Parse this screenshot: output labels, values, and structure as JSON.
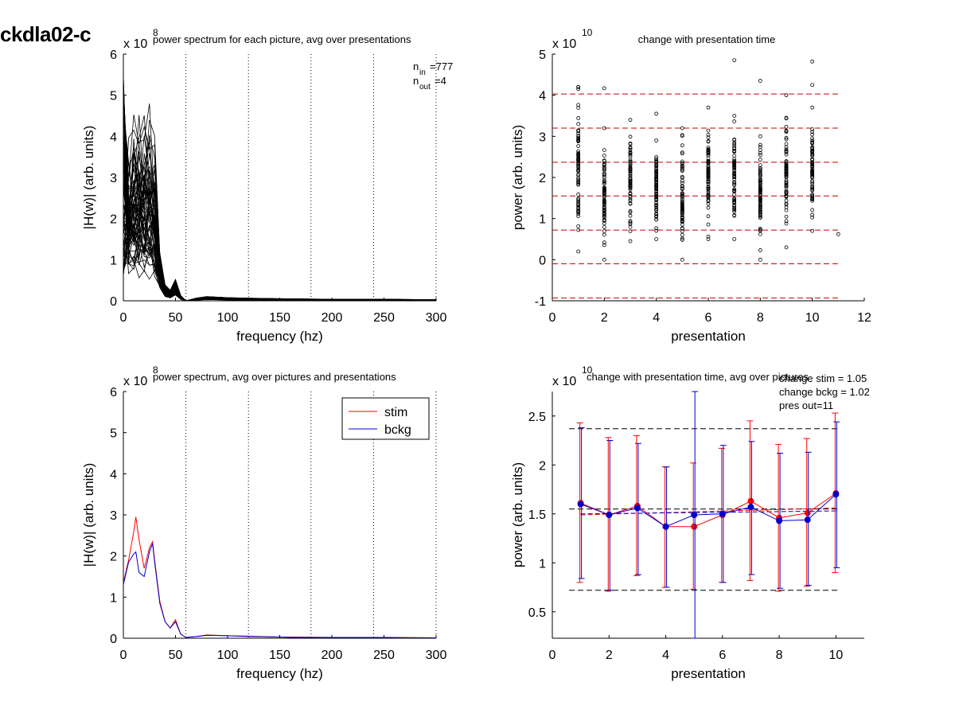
{
  "page": {
    "title": "ckdla02-c"
  },
  "colors": {
    "stim": "#ff0000",
    "bckg": "#0000cc",
    "spectrum": "#000000",
    "dashed_red": "#cc0000",
    "dashed_black": "#000000"
  },
  "chart_data": [
    {
      "id": "tl",
      "type": "line",
      "title": "power spectrum for each picture, avg over presentations",
      "xlabel": "frequency (hz)",
      "ylabel": "|H(w)| (arb. units)",
      "exponent": "x 10",
      "exponent_power": "8",
      "xlim": [
        0,
        300
      ],
      "ylim": [
        0,
        6
      ],
      "xticks": [
        "0",
        "50",
        "100",
        "150",
        "200",
        "250",
        "300"
      ],
      "yticks": [
        "0",
        "1",
        "2",
        "3",
        "4",
        "5",
        "6"
      ],
      "vlines": [
        60,
        120,
        180,
        240,
        300
      ],
      "annotation": {
        "n_in_label": "n",
        "n_in_sub": "in",
        "n_in_value": "=777",
        "n_out_label": "n",
        "n_out_sub": "out",
        "n_out_value": "=4"
      },
      "mean_spectrum": {
        "x": [
          0,
          5,
          10,
          15,
          20,
          25,
          30,
          35,
          40,
          45,
          50,
          55,
          60,
          70,
          80,
          100,
          120,
          150,
          200,
          250,
          300
        ],
        "y": [
          2.1,
          2.2,
          2.5,
          2.6,
          2.5,
          2.4,
          2.2,
          0.9,
          0.3,
          0.2,
          0.4,
          0.1,
          0.0,
          0.05,
          0.08,
          0.06,
          0.05,
          0.04,
          0.03,
          0.03,
          0.02
        ]
      },
      "n_curves_drawn": 60
    },
    {
      "id": "tr",
      "type": "scatter",
      "title": "change with presentation time",
      "xlabel": "presentation",
      "ylabel": "power (arb. units)",
      "exponent": "x 10",
      "exponent_power": "10",
      "xlim": [
        0,
        12
      ],
      "ylim": [
        -1,
        5
      ],
      "xticks": [
        "0",
        "2",
        "4",
        "6",
        "8",
        "10",
        "12"
      ],
      "yticks": [
        "-1",
        "0",
        "1",
        "2",
        "3",
        "4",
        "5"
      ],
      "hlines": [
        4.03,
        3.2,
        2.37,
        1.55,
        0.72,
        -0.1,
        -0.93
      ],
      "columns": [
        {
          "x": 1,
          "min": 0.2,
          "max": 4.2,
          "outliers": [
            3.3,
            4.15,
            4.2
          ]
        },
        {
          "x": 2,
          "min": 0.0,
          "max": 3.2,
          "outliers": [
            4.17
          ]
        },
        {
          "x": 3,
          "min": 0.45,
          "max": 3.4,
          "outliers": []
        },
        {
          "x": 4,
          "min": 0.5,
          "max": 2.9,
          "outliers": [
            3.55
          ]
        },
        {
          "x": 5,
          "min": 0.0,
          "max": 3.2,
          "outliers": []
        },
        {
          "x": 6,
          "min": 0.5,
          "max": 3.7,
          "outliers": []
        },
        {
          "x": 7,
          "min": 0.5,
          "max": 3.5,
          "outliers": [
            4.85
          ]
        },
        {
          "x": 8,
          "min": 0.0,
          "max": 3.0,
          "outliers": [
            4.35
          ]
        },
        {
          "x": 9,
          "min": 0.3,
          "max": 4.0,
          "outliers": []
        },
        {
          "x": 10,
          "min": 0.7,
          "max": 3.7,
          "outliers": [
            4.25,
            4.82
          ]
        },
        {
          "x": 11,
          "min": 0.62,
          "max": 0.62,
          "outliers": []
        }
      ]
    },
    {
      "id": "bl",
      "type": "line",
      "title": "power spectrum, avg over pictures and presentations",
      "xlabel": "frequency (hz)",
      "ylabel": "|H(w)| (arb. units)",
      "exponent": "x 10",
      "exponent_power": "8",
      "xlim": [
        0,
        300
      ],
      "ylim": [
        0,
        6
      ],
      "xticks": [
        "0",
        "50",
        "100",
        "150",
        "200",
        "250",
        "300"
      ],
      "yticks": [
        "0",
        "1",
        "2",
        "3",
        "4",
        "5",
        "6"
      ],
      "vlines": [
        60,
        120,
        180,
        240,
        300
      ],
      "legend": {
        "position": "top-right",
        "entries": [
          "stim",
          "bckg"
        ]
      },
      "series": [
        {
          "name": "stim",
          "x": [
            0,
            5,
            10,
            12,
            15,
            20,
            25,
            28,
            30,
            35,
            40,
            45,
            50,
            55,
            60,
            70,
            80,
            100,
            120,
            150,
            160,
            200,
            250,
            300
          ],
          "y": [
            1.35,
            1.9,
            2.6,
            2.95,
            2.4,
            1.7,
            2.2,
            2.35,
            1.9,
            0.9,
            0.4,
            0.25,
            0.45,
            0.1,
            0.02,
            0.04,
            0.08,
            0.06,
            0.05,
            0.03,
            0.03,
            0.02,
            0.02,
            0.01
          ]
        },
        {
          "name": "bckg",
          "x": [
            0,
            5,
            10,
            12,
            15,
            20,
            25,
            28,
            30,
            35,
            40,
            45,
            50,
            55,
            60,
            70,
            80,
            100,
            120,
            150,
            160,
            200,
            250,
            300
          ],
          "y": [
            1.3,
            1.85,
            2.05,
            2.1,
            1.6,
            1.5,
            2.1,
            2.3,
            1.85,
            0.85,
            0.4,
            0.25,
            0.4,
            0.1,
            0.02,
            0.04,
            0.07,
            0.06,
            0.04,
            0.03,
            0.02,
            0.02,
            0.02,
            0.01
          ]
        }
      ]
    },
    {
      "id": "br",
      "type": "line",
      "title": "change with presentation time, avg over pictures",
      "xlabel": "presentation",
      "ylabel": "power (arb. units)",
      "exponent": "x 10",
      "exponent_power": "10",
      "xlim": [
        0,
        11
      ],
      "ylim": [
        0.23,
        2.75
      ],
      "xticks": [
        "0",
        "2",
        "4",
        "6",
        "8",
        "10"
      ],
      "ytick_values": [
        0.5,
        1,
        1.5,
        2,
        2.5
      ],
      "yticks": [
        "0.5",
        "1",
        "1.5",
        "2",
        "2.5"
      ],
      "xtick_values": [
        0,
        2,
        4,
        6,
        8,
        10
      ],
      "annotations": [
        "change stim = 1.05",
        "change bckg = 1.02",
        "pres out=11"
      ],
      "hlines": [
        2.37,
        1.55,
        0.72
      ],
      "trend": {
        "x": [
          1,
          10
        ],
        "stim": [
          1.49,
          1.56
        ],
        "bckg": [
          1.5,
          1.53
        ]
      },
      "series": [
        {
          "name": "stim",
          "x": [
            1,
            2,
            3,
            4,
            5,
            6,
            7,
            8,
            9,
            10
          ],
          "y": [
            1.61,
            1.49,
            1.58,
            1.37,
            1.37,
            1.49,
            1.63,
            1.46,
            1.51,
            1.71
          ],
          "err_low": [
            0.8,
            0.71,
            0.87,
            0.75,
            0.73,
            0.8,
            0.82,
            0.71,
            0.76,
            0.9
          ],
          "err_high": [
            2.43,
            2.28,
            2.3,
            1.98,
            2.02,
            2.17,
            2.45,
            2.21,
            2.27,
            2.53
          ]
        },
        {
          "name": "bckg",
          "x": [
            1,
            2,
            3,
            4,
            5,
            6,
            7,
            8,
            9,
            10
          ],
          "y": [
            1.6,
            1.49,
            1.56,
            1.37,
            1.49,
            1.5,
            1.57,
            1.43,
            1.44,
            1.7
          ],
          "err_low": [
            0.84,
            0.72,
            0.88,
            0.75,
            0.23,
            0.8,
            0.88,
            0.74,
            0.77,
            0.95
          ],
          "err_high": [
            2.38,
            2.25,
            2.22,
            1.98,
            2.75,
            2.2,
            2.24,
            2.12,
            2.13,
            2.44
          ]
        }
      ]
    }
  ]
}
